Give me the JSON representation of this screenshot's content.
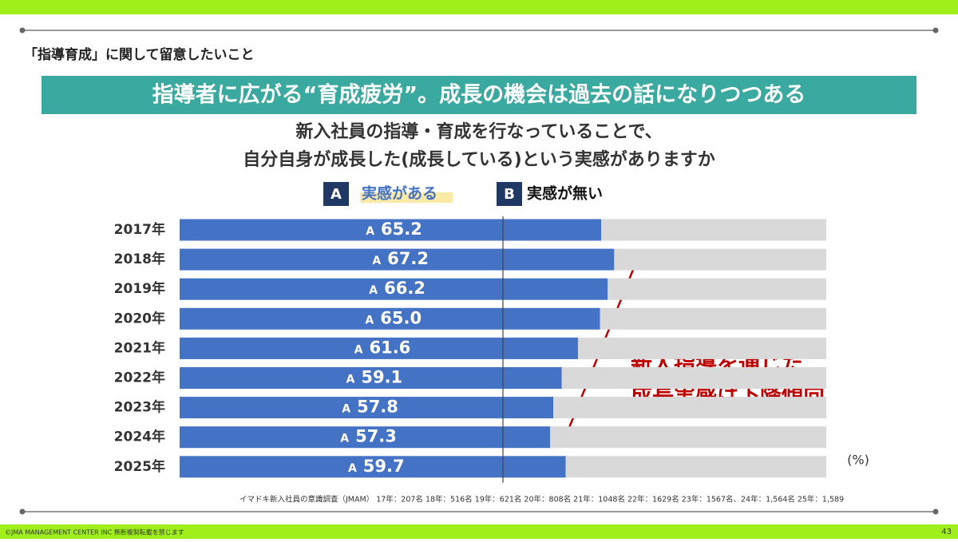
{
  "header": "「指導育成」に関して留意したいこと",
  "banner": "指導者に広がる“育成疲労”。成長の機会は過去の話になりつつある",
  "chart_data": {
    "type": "stacked-barh",
    "title": [
      "新入社員の指導・育成を行なっていることで、",
      "自分自身が成長した(成長している)という実感がありますか"
    ],
    "categories": [
      "2017年",
      "2018年",
      "2019年",
      "2020年",
      "2021年",
      "2022年",
      "2023年",
      "2024年",
      "2025年"
    ],
    "series": [
      {
        "key": "A",
        "name": "実感がある",
        "color": "#4472c4",
        "values": [
          65.2,
          67.2,
          66.2,
          65.0,
          61.6,
          59.1,
          57.8,
          57.3,
          59.7
        ],
        "value_labels": [
          "65.2",
          "67.2",
          "66.2",
          "65.0",
          "61.6",
          "59.1",
          "57.8",
          "57.3",
          "59.7"
        ]
      },
      {
        "key": "B",
        "name": "実感が無い",
        "color": "#d9d9d9",
        "values": [
          34.8,
          32.8,
          33.8,
          35.0,
          38.4,
          40.9,
          42.2,
          42.7,
          40.3
        ]
      }
    ],
    "xlim": [
      0,
      100
    ],
    "midline": 50,
    "unit": "(%)",
    "annotation": [
      "新人指導を通じた",
      "成長実感は下降傾向"
    ],
    "source": "イマドキ新入社員の意識調査（JMAM） 17年：207名 18年：516名 19年：621名 20年：808名 21年：1048名 22年：1629名 23年：1567名、24年：1,564名 25年：1,589"
  },
  "footer": {
    "copyright": "©JMA MANAGEMENT CENTER INC 無断複製転載を禁じます",
    "page": "43"
  }
}
